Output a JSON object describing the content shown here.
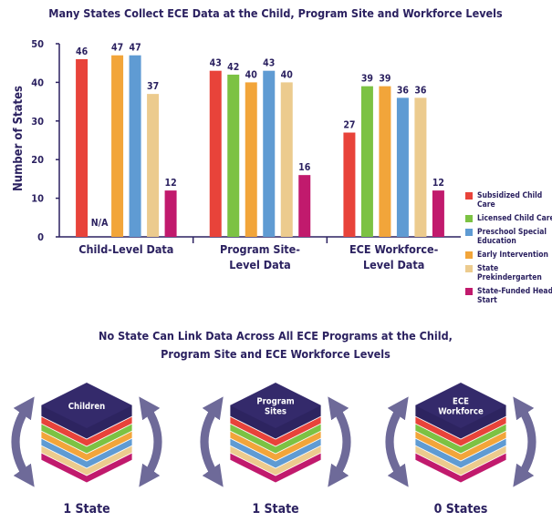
{
  "chart_data": {
    "type": "bar",
    "title": "Many States Collect ECE Data at the Child, Program Site and Workforce Levels",
    "y_label": "Number of States",
    "categories": [
      [
        "Child-Level Data"
      ],
      [
        "Program Site-",
        "Level Data"
      ],
      [
        "ECE Workforce-",
        "Level Data"
      ]
    ],
    "series": [
      {
        "name": "Subsidized Child Care",
        "color": "#e8433a",
        "values": [
          46,
          43,
          27
        ]
      },
      {
        "name": "Licensed Child Care",
        "color": "#7cc243",
        "values": [
          null,
          42,
          39
        ],
        "value_labels": [
          "N/A",
          "42",
          "39"
        ]
      },
      {
        "name": "Early Intervention",
        "color": "#f2a53a",
        "values": [
          47,
          40,
          39
        ]
      },
      {
        "name": "Preschool Special Education",
        "color": "#5f9bd3",
        "values": [
          47,
          43,
          36
        ]
      },
      {
        "name": "State Prekindergarten",
        "color": "#eccb8e",
        "values": [
          37,
          40,
          36
        ]
      },
      {
        "name": "State-Funded Head Start",
        "color": "#c11a6d",
        "values": [
          12,
          16,
          12
        ]
      }
    ],
    "ylim": [
      0,
      50
    ],
    "yticks": [
      0,
      10,
      20,
      30,
      40,
      50
    ],
    "grid": false
  },
  "diagram": {
    "title": [
      "No State Can Link Data Across All ECE Programs at the Child,",
      "Program Site and ECE Workforce Levels"
    ],
    "stacks": [
      {
        "label": [
          "Children"
        ],
        "caption": "1 State"
      },
      {
        "label": [
          "Program",
          "Sites"
        ],
        "caption": "1 State"
      },
      {
        "label": [
          "ECE",
          "Workforce"
        ],
        "caption": "0 States"
      }
    ]
  }
}
